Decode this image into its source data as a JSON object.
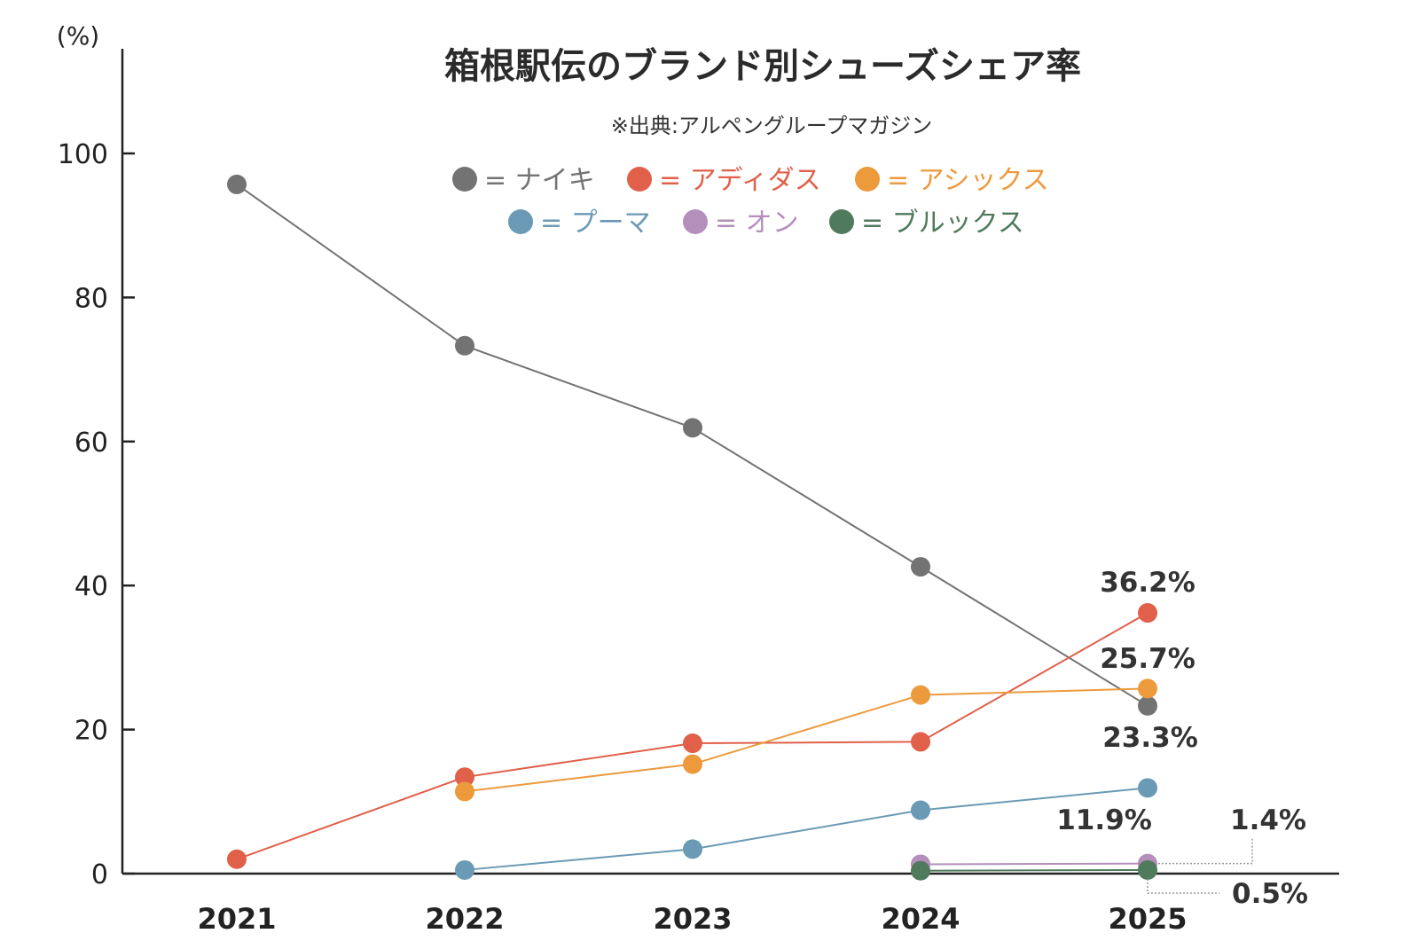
{
  "chart_data": {
    "type": "line",
    "title": "箱根駅伝のブランド別シューズシェア率",
    "subtitle": "※出典:アルペングループマガジン",
    "ylabel": "(%)",
    "xlabel": "",
    "ylim": [
      0,
      100
    ],
    "yticks": [
      "0",
      "20",
      "40",
      "60",
      "80",
      "100"
    ],
    "categories": [
      "2021",
      "2022",
      "2023",
      "2024",
      "2025"
    ],
    "legend_placement": "top-center",
    "grid": false,
    "series": [
      {
        "name": "ナイキ",
        "legend": "= ナイキ",
        "color": "#737373",
        "values": [
          95.7,
          73.3,
          61.9,
          42.6,
          23.3
        ]
      },
      {
        "name": "アディダス",
        "legend": "= アディダス",
        "color": "#e0604a",
        "values": [
          2.0,
          13.4,
          18.1,
          18.3,
          36.2
        ]
      },
      {
        "name": "アシックス",
        "legend": "= アシックス",
        "color": "#ec9a3c",
        "values": [
          null,
          11.4,
          15.2,
          24.8,
          25.7
        ]
      },
      {
        "name": "プーマ",
        "legend": "= プーマ",
        "color": "#6a9ab5",
        "values": [
          null,
          0.5,
          3.4,
          8.8,
          11.9
        ]
      },
      {
        "name": "オン",
        "legend": "= オン",
        "color": "#b48fbb",
        "values": [
          null,
          null,
          null,
          1.3,
          1.4
        ]
      },
      {
        "name": "ブルックス",
        "legend": "= ブルックス",
        "color": "#4f7a5c",
        "values": [
          null,
          null,
          null,
          0.4,
          0.5
        ]
      }
    ],
    "annotations": [
      {
        "series": "アディダス",
        "text": "36.2%"
      },
      {
        "series": "アシックス",
        "text": "25.7%"
      },
      {
        "series": "ナイキ",
        "text": "23.3%"
      },
      {
        "series": "プーマ",
        "text": "11.9%"
      },
      {
        "series": "オン",
        "text": "1.4%"
      },
      {
        "series": "ブルックス",
        "text": "0.5%"
      }
    ]
  }
}
